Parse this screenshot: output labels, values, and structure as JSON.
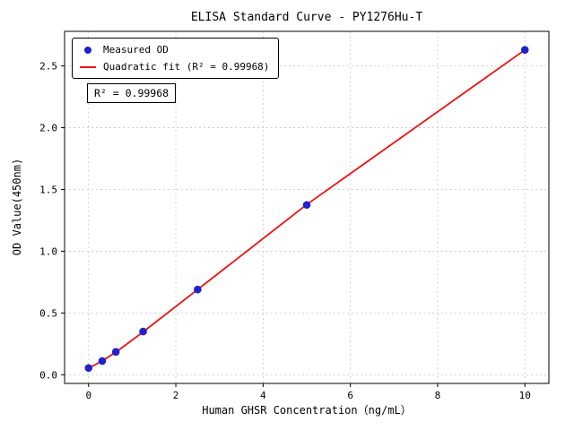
{
  "chart_data": {
    "type": "scatter",
    "title": "ELISA Standard Curve - PY1276Hu-T",
    "xlabel": "Human GHSR Concentration（ng/mL）",
    "ylabel": "OD Value(450nm)",
    "annotation": "R² = 0.99968",
    "legend_position": "upper left",
    "grid": "dashed",
    "xlim": [
      -0.55,
      10.55
    ],
    "ylim": [
      -0.07,
      2.78
    ],
    "x_ticks": [
      0,
      2,
      4,
      6,
      8,
      10
    ],
    "x_tick_labels": [
      "0",
      "2",
      "4",
      "6",
      "8",
      "10"
    ],
    "y_ticks": [
      0,
      0.5,
      1,
      1.5,
      2,
      2.5
    ],
    "y_tick_labels": [
      "0.0",
      "0.5",
      "1.0",
      "1.5",
      "2.0",
      "2.5"
    ],
    "colors": {
      "measured": "#2020cc",
      "fit": "#ee1010",
      "grid": "#c8c8c8",
      "axis": "#000000"
    },
    "series": [
      {
        "name": "Measured OD",
        "type": "scatter",
        "color": "#2020cc",
        "x": [
          0,
          0.313,
          0.625,
          1.25,
          2.5,
          5,
          10
        ],
        "y": [
          0.055,
          0.112,
          0.185,
          0.35,
          0.69,
          1.375,
          2.63
        ]
      },
      {
        "name": "Quadratic fit (R² = 0.99968)",
        "type": "line",
        "color": "#ee1010",
        "x": [
          0,
          0.313,
          0.625,
          1.25,
          2.5,
          5,
          10
        ],
        "y": [
          0.052,
          0.113,
          0.182,
          0.347,
          0.69,
          1.378,
          2.63
        ]
      }
    ]
  }
}
